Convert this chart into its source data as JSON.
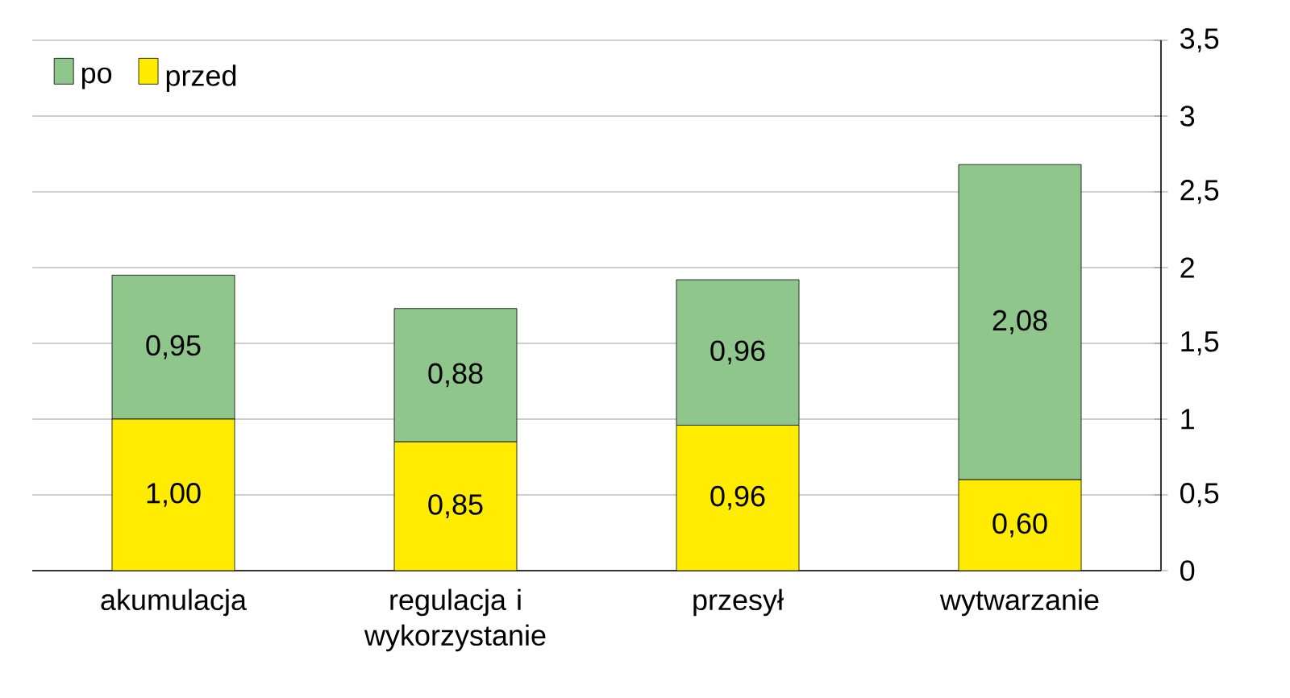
{
  "chart_data": {
    "type": "bar",
    "stacked": true,
    "categories": [
      "akumulacja",
      "regulacja i wykorzystanie",
      "przesył",
      "wytwarzanie"
    ],
    "series": [
      {
        "name": "przed",
        "color": "#ffec00",
        "values": [
          1.0,
          0.85,
          0.96,
          0.6
        ],
        "value_labels": [
          "1,00",
          "0,85",
          "0,96",
          "0,60"
        ]
      },
      {
        "name": "po",
        "color": "#8fc68c",
        "values": [
          0.95,
          0.88,
          0.96,
          2.08
        ],
        "value_labels": [
          "0,95",
          "0,88",
          "0,96",
          "2,08"
        ]
      }
    ],
    "ylim": [
      0,
      3.5
    ],
    "yticks": [
      0,
      {
        "value": 0.5,
        "label": "0,5"
      },
      1,
      {
        "value": 1.5,
        "label": "1,5"
      },
      2,
      {
        "value": 2.5,
        "label": "2,5"
      },
      3,
      {
        "value": 3.5,
        "label": "3,5"
      }
    ],
    "grid": "y",
    "legend": "top left"
  }
}
